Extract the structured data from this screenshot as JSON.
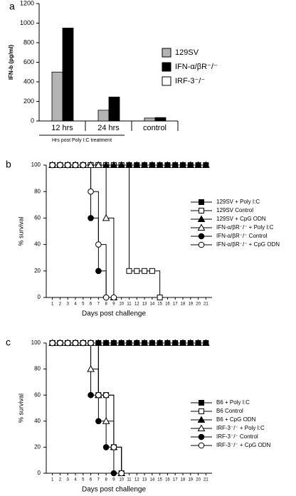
{
  "chart_data": [
    {
      "type": "bar",
      "panel": "a",
      "ylabel": "IFN-b (pg/ml)",
      "x_group_label": "Hrs post Poly I:C treatment",
      "categories": [
        "12 hrs",
        "24 hrs",
        "control"
      ],
      "series": [
        {
          "name": "129SV",
          "color": "#b3b3b3",
          "values": [
            500,
            110,
            30
          ]
        },
        {
          "name": "IFN-α/βR⁻/⁻",
          "color": "#000000",
          "values": [
            950,
            245,
            35
          ]
        },
        {
          "name": "IRF-3⁻/⁻",
          "color": "#ffffff",
          "values": [
            0,
            0,
            0
          ]
        }
      ],
      "ylim": [
        0,
        1200
      ],
      "yticks": [
        0,
        200,
        400,
        600,
        800,
        1000,
        1200
      ]
    },
    {
      "type": "step",
      "panel": "b",
      "ylabel": "% survival",
      "xlabel": "Days post challenge",
      "x": [
        1,
        2,
        3,
        4,
        5,
        6,
        7,
        8,
        9,
        10,
        11,
        12,
        13,
        14,
        15,
        16,
        17,
        18,
        19,
        20,
        21
      ],
      "xlim": [
        0.2,
        21.8
      ],
      "xticks": [
        1,
        2,
        3,
        4,
        5,
        6,
        7,
        8,
        9,
        10,
        11,
        12,
        13,
        14,
        15,
        16,
        17,
        18,
        19,
        20,
        21
      ],
      "ylim": [
        0,
        100
      ],
      "yticks": [
        0,
        20,
        40,
        60,
        80,
        100
      ],
      "series": [
        {
          "name": "129SV + Poly I:C",
          "color": "#000000",
          "marker": "square",
          "fill": "#000000",
          "values": [
            100,
            100,
            100,
            100,
            100,
            100,
            100,
            100,
            100,
            100,
            100,
            100,
            100,
            100,
            100,
            100,
            100,
            100,
            100,
            100,
            100
          ]
        },
        {
          "name": "129SV Control",
          "color": "#000000",
          "marker": "square",
          "fill": "#ffffff",
          "values": [
            100,
            100,
            100,
            100,
            100,
            100,
            100,
            100,
            100,
            100,
            20,
            20,
            20,
            20,
            0,
            null,
            null,
            null,
            null,
            null,
            null
          ]
        },
        {
          "name": "129SV + CpG ODN",
          "color": "#000000",
          "marker": "triangle",
          "fill": "#000000",
          "values": [
            100,
            100,
            100,
            100,
            100,
            100,
            100,
            100,
            100,
            100,
            100,
            100,
            100,
            100,
            100,
            100,
            100,
            100,
            100,
            100,
            100
          ]
        },
        {
          "name": "IFN-α/βR⁻/⁻ + Poly I:C",
          "color": "#000000",
          "marker": "triangle",
          "fill": "#ffffff",
          "values": [
            100,
            100,
            100,
            100,
            100,
            100,
            100,
            60,
            0,
            null,
            null,
            null,
            null,
            null,
            null,
            null,
            null,
            null,
            null,
            null,
            null
          ]
        },
        {
          "name": "IFN-α/βR⁻/⁻ Control",
          "color": "#000000",
          "marker": "circle",
          "fill": "#000000",
          "values": [
            100,
            100,
            100,
            100,
            100,
            60,
            20,
            0,
            null,
            null,
            null,
            null,
            null,
            null,
            null,
            null,
            null,
            null,
            null,
            null,
            null
          ]
        },
        {
          "name": "IFN-α/βR⁻/⁻ + CpG ODN",
          "color": "#000000",
          "marker": "circle",
          "fill": "#ffffff",
          "values": [
            100,
            100,
            100,
            100,
            100,
            80,
            40,
            0,
            0,
            null,
            null,
            null,
            null,
            null,
            null,
            null,
            null,
            null,
            null,
            null,
            null
          ]
        }
      ]
    },
    {
      "type": "step",
      "panel": "c",
      "ylabel": "% survival",
      "xlabel": "Days post challenge",
      "x": [
        1,
        2,
        3,
        4,
        5,
        6,
        7,
        8,
        9,
        10,
        11,
        12,
        13,
        14,
        15,
        16,
        17,
        18,
        19,
        20,
        21
      ],
      "xlim": [
        0.2,
        21.8
      ],
      "xticks": [
        1,
        2,
        3,
        4,
        5,
        6,
        7,
        8,
        9,
        10,
        11,
        12,
        13,
        14,
        15,
        16,
        17,
        18,
        19,
        20,
        21
      ],
      "ylim": [
        0,
        100
      ],
      "yticks": [
        0,
        20,
        40,
        60,
        80,
        100
      ],
      "series": [
        {
          "name": "B6 + Poly I:C",
          "color": "#000000",
          "marker": "square",
          "fill": "#000000",
          "values": [
            100,
            100,
            100,
            100,
            100,
            100,
            100,
            100,
            100,
            100,
            100,
            100,
            100,
            100,
            100,
            100,
            100,
            100,
            100,
            100,
            100
          ]
        },
        {
          "name": "B6 Control",
          "color": "#000000",
          "marker": "square",
          "fill": "#ffffff",
          "values": [
            100,
            100,
            100,
            100,
            100,
            100,
            60,
            60,
            20,
            0,
            null,
            null,
            null,
            null,
            null,
            null,
            null,
            null,
            null,
            null,
            null
          ]
        },
        {
          "name": "B6 + CpG ODN",
          "color": "#000000",
          "marker": "triangle",
          "fill": "#000000",
          "values": [
            100,
            100,
            100,
            100,
            100,
            100,
            100,
            100,
            100,
            100,
            100,
            100,
            100,
            100,
            100,
            100,
            100,
            100,
            100,
            100,
            100
          ]
        },
        {
          "name": "IRF-3⁻/⁻ + Poly I:C",
          "color": "#000000",
          "marker": "triangle",
          "fill": "#ffffff",
          "values": [
            100,
            100,
            100,
            100,
            100,
            80,
            60,
            40,
            20,
            0,
            null,
            null,
            null,
            null,
            null,
            null,
            null,
            null,
            null,
            null,
            null
          ]
        },
        {
          "name": "IRF-3⁻/⁻ Control",
          "color": "#000000",
          "marker": "circle",
          "fill": "#000000",
          "values": [
            100,
            100,
            100,
            100,
            100,
            60,
            40,
            20,
            0,
            null,
            null,
            null,
            null,
            null,
            null,
            null,
            null,
            null,
            null,
            null,
            null
          ]
        },
        {
          "name": "IRF-3⁻/⁻ + CpG ODN",
          "color": "#000000",
          "marker": "circle",
          "fill": "#ffffff",
          "values": [
            100,
            100,
            100,
            100,
            100,
            100,
            60,
            60,
            20,
            0,
            null,
            null,
            null,
            null,
            null,
            null,
            null,
            null,
            null,
            null,
            null
          ]
        }
      ]
    }
  ]
}
